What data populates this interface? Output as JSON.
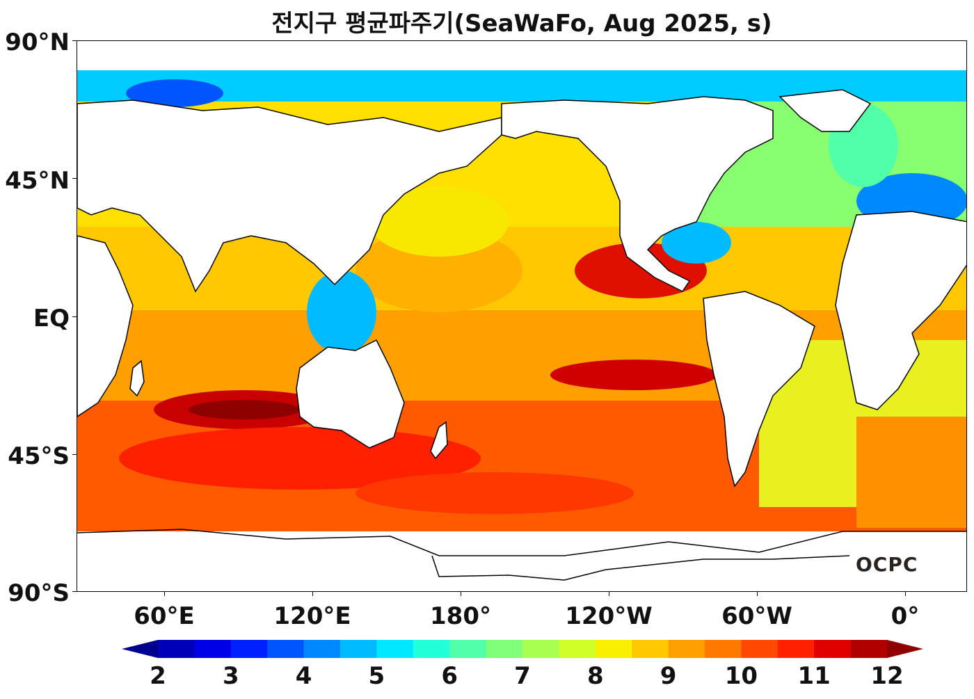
{
  "title": "전지구 평균파주기(SeaWaFo, Aug 2025, s)",
  "lat_labels": [
    "90°N",
    "45°N",
    "EQ",
    "45°S",
    "90°S"
  ],
  "lon_labels": [
    "60°E",
    "120°E",
    "180°",
    "120°W",
    "60°W",
    "0°"
  ],
  "colorbar": {
    "min": 2,
    "max": 12,
    "step": 0.5,
    "labels": [
      "2",
      "3",
      "4",
      "5",
      "6",
      "7",
      "8",
      "9",
      "10",
      "11",
      "12"
    ],
    "colors": [
      "#00008f",
      "#0000b8",
      "#0000e8",
      "#0020ff",
      "#0055ff",
      "#0088ff",
      "#00bbff",
      "#00e8ff",
      "#20ffd8",
      "#50ffa8",
      "#80ff78",
      "#a8ff50",
      "#d0ff28",
      "#f8f000",
      "#ffc800",
      "#ffa000",
      "#ff7800",
      "#ff4800",
      "#ff2000",
      "#e00000",
      "#b00000",
      "#8f0000"
    ],
    "extend": "both"
  },
  "watermark": "OCPC"
}
